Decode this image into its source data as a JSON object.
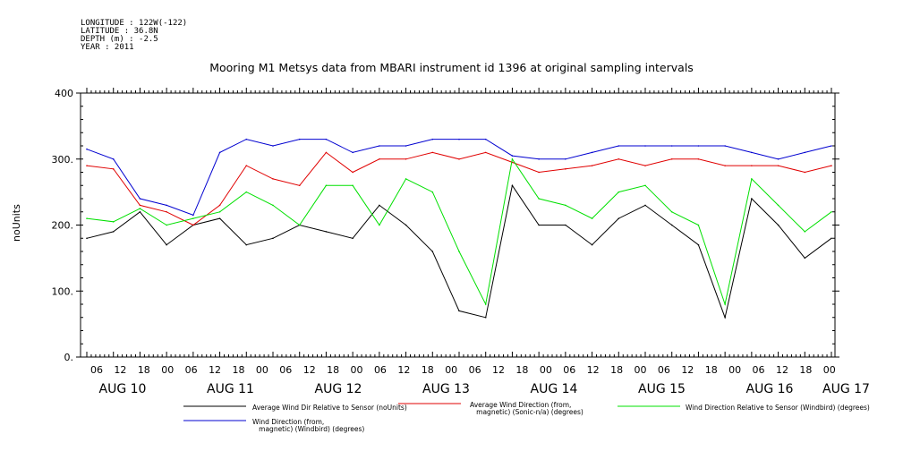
{
  "header": {
    "lines": [
      "LONGITUDE : 122W(-122)",
      "LATITUDE : 36.8N",
      "DEPTH (m) : -2.5",
      "YEAR : 2011"
    ]
  },
  "colors": {
    "black": "#000000",
    "red": "#e00000",
    "green": "#00e000",
    "blue": "#0000d0"
  },
  "chart_data": {
    "type": "line",
    "title": "Mooring M1 Metsys data from MBARI instrument id 1396 at original sampling intervals",
    "ylabel": "noUnits",
    "ylim": [
      0,
      400
    ],
    "yticks": [
      "400",
      "300.",
      "200.",
      "100.",
      "0."
    ],
    "x_hour_labels": [
      "06",
      "12",
      "18",
      "00",
      "06",
      "12",
      "18",
      "00",
      "06",
      "12",
      "18",
      "00",
      "06",
      "12",
      "18",
      "00",
      "06",
      "12",
      "18",
      "00",
      "06",
      "12",
      "18",
      "00",
      "06",
      "12",
      "18",
      "00",
      "06",
      "12",
      "18",
      "00"
    ],
    "x_day_labels": [
      "AUG 10",
      "AUG 11",
      "AUG 12",
      "AUG 13",
      "AUG 14",
      "AUG 15",
      "AUG 16",
      "AUG 17"
    ],
    "x_range_hours": [
      0,
      168
    ],
    "series": [
      {
        "name": "Average Wind Dir Relative to Sensor (noUnits)",
        "color": "black",
        "x": [
          0,
          6,
          12,
          18,
          24,
          30,
          36,
          42,
          48,
          54,
          60,
          66,
          72,
          78,
          84,
          90,
          96,
          102,
          108,
          114,
          120,
          126,
          132,
          138,
          144,
          150,
          156,
          162,
          168
        ],
        "values": [
          180,
          190,
          220,
          170,
          200,
          210,
          170,
          180,
          200,
          190,
          180,
          230,
          200,
          160,
          70,
          60,
          260,
          200,
          200,
          170,
          210,
          230,
          200,
          170,
          60,
          240,
          200,
          150,
          180
        ]
      },
      {
        "name": "Average Wind Direction (from, magnetic) (Sonic-n/a) (degrees)",
        "color": "red",
        "x": [
          0,
          6,
          12,
          18,
          24,
          30,
          36,
          42,
          48,
          54,
          60,
          66,
          72,
          78,
          84,
          90,
          96,
          102,
          108,
          114,
          120,
          126,
          132,
          138,
          144,
          150,
          156,
          162,
          168
        ],
        "values": [
          290,
          285,
          230,
          220,
          200,
          230,
          290,
          270,
          260,
          310,
          280,
          300,
          300,
          310,
          300,
          310,
          295,
          280,
          285,
          290,
          300,
          290,
          300,
          300,
          290,
          290,
          290,
          280,
          290
        ]
      },
      {
        "name": "Wind Direction Relative to Sensor (Windbird) (degrees)",
        "color": "green",
        "x": [
          0,
          6,
          12,
          18,
          24,
          30,
          36,
          42,
          48,
          54,
          60,
          66,
          72,
          78,
          84,
          90,
          96,
          102,
          108,
          114,
          120,
          126,
          132,
          138,
          144,
          150,
          156,
          162,
          168
        ],
        "values": [
          210,
          205,
          225,
          200,
          210,
          220,
          250,
          230,
          200,
          260,
          260,
          200,
          270,
          250,
          160,
          80,
          300,
          240,
          230,
          210,
          250,
          260,
          220,
          200,
          80,
          270,
          230,
          190,
          220
        ]
      },
      {
        "name": "Wind Direction (from, magnetic) (Windbird) (degrees)",
        "color": "blue",
        "x": [
          0,
          6,
          12,
          18,
          24,
          30,
          36,
          42,
          48,
          54,
          60,
          66,
          72,
          78,
          84,
          90,
          96,
          102,
          108,
          114,
          120,
          126,
          132,
          138,
          144,
          150,
          156,
          162,
          168
        ],
        "values": [
          315,
          300,
          240,
          230,
          215,
          310,
          330,
          320,
          330,
          330,
          310,
          320,
          320,
          330,
          330,
          330,
          305,
          300,
          300,
          310,
          320,
          320,
          320,
          320,
          320,
          310,
          300,
          310,
          320
        ]
      }
    ]
  },
  "legend": [
    {
      "label": "Average Wind Dir Relative to Sensor (noUnits)",
      "color": "black"
    },
    {
      "label": "Average Wind Direction (from,\n   magnetic) (Sonic-n/a) (degrees)",
      "color": "red"
    },
    {
      "label": "Wind Direction Relative to Sensor (Windbird) (degrees)",
      "color": "green"
    },
    {
      "label": "Wind Direction (from,\n   magnetic) (Windbird) (degrees)",
      "color": "blue"
    }
  ]
}
